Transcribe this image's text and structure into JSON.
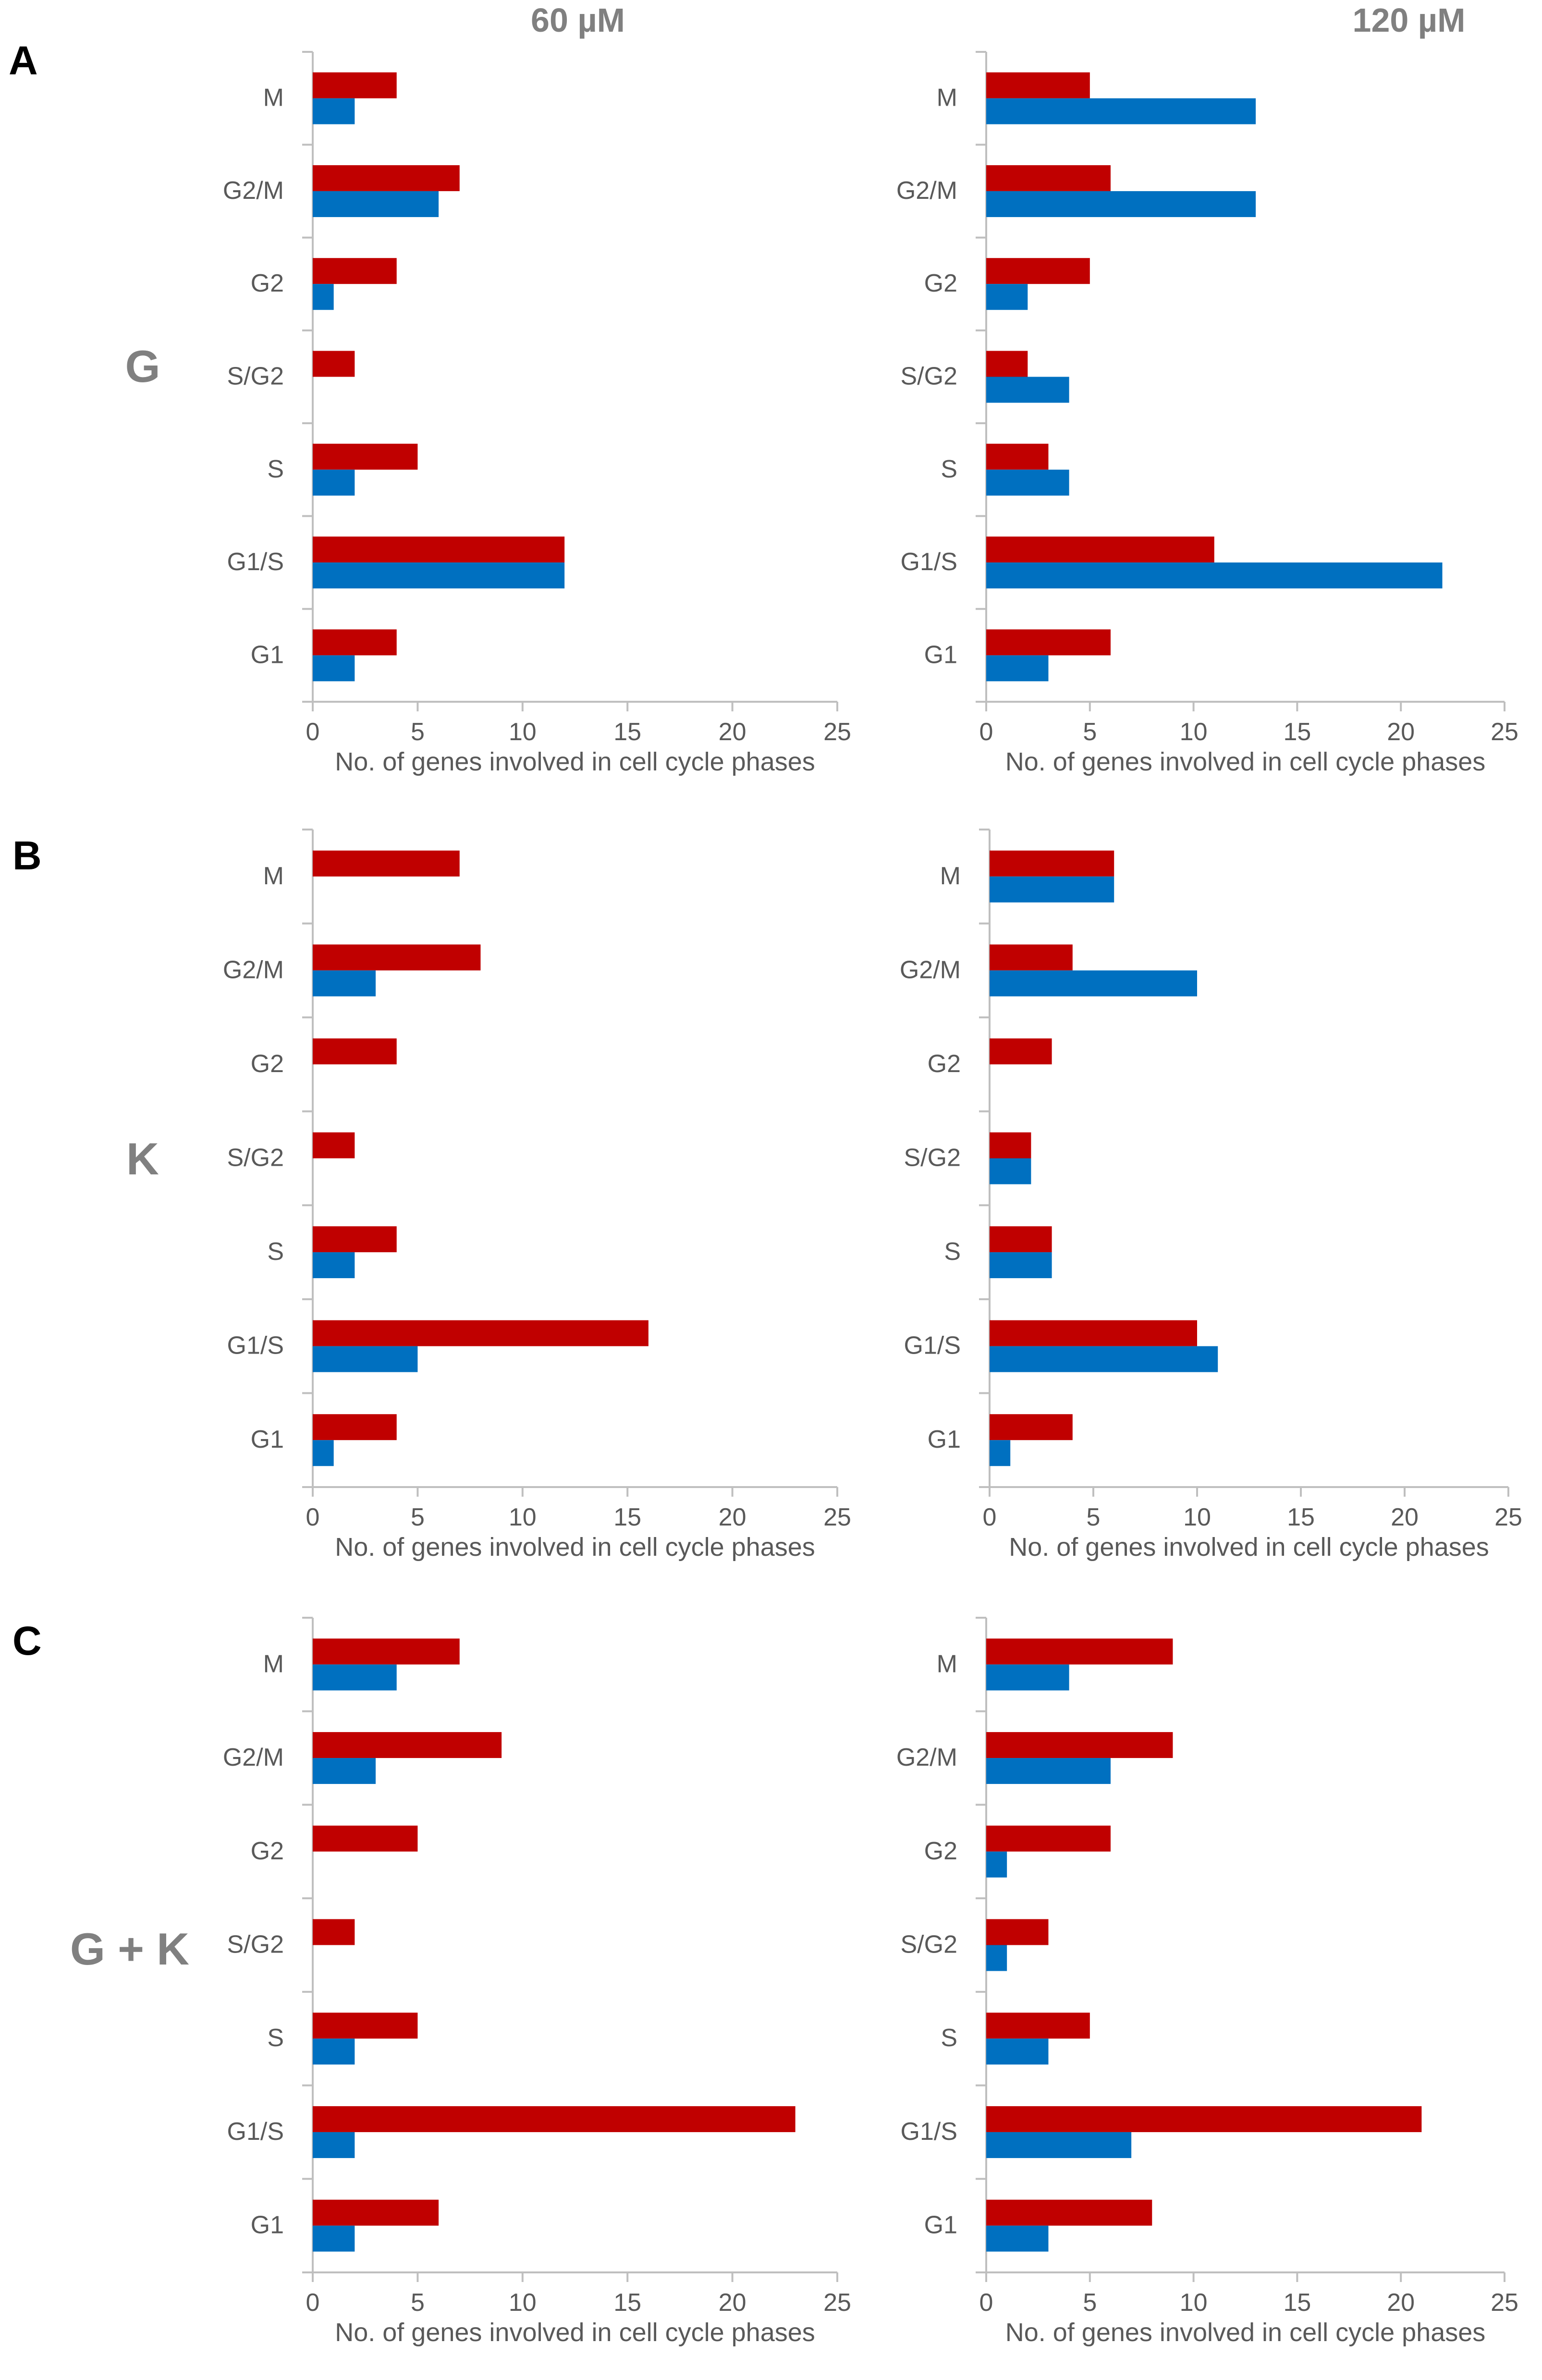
{
  "figure": {
    "column_titles": [
      "60 µM",
      "120 µM"
    ],
    "panels": [
      {
        "letter": "A",
        "treatment": "G"
      },
      {
        "letter": "B",
        "treatment": "K"
      },
      {
        "letter": "C",
        "treatment": "G + K"
      }
    ]
  },
  "colors": {
    "red_series": "#c00000",
    "blue_series": "#0070c0",
    "axis": "#bfbfbf",
    "text": "#595959",
    "label_gray": "#808080",
    "panel_letter": "#000000"
  },
  "chart_data": [
    {
      "id": "A-60",
      "type": "bar",
      "orientation": "horizontal",
      "title": "60 µM",
      "panel": "A",
      "treatment": "G",
      "categories": [
        "M",
        "G2/M",
        "G2",
        "S/G2",
        "S",
        "G1/S",
        "G1"
      ],
      "series": [
        {
          "name": "red",
          "color": "#c00000",
          "values": [
            4,
            7,
            4,
            2,
            5,
            12,
            4
          ]
        },
        {
          "name": "blue",
          "color": "#0070c0",
          "values": [
            2,
            6,
            1,
            0,
            2,
            12,
            2
          ]
        }
      ],
      "xlabel": "No. of genes involved in cell cycle phases",
      "xlim": [
        0,
        25
      ],
      "xticks": [
        0,
        5,
        10,
        15,
        20,
        25
      ],
      "grid": false
    },
    {
      "id": "A-120",
      "type": "bar",
      "orientation": "horizontal",
      "title": "120 µM",
      "panel": "A",
      "treatment": "G",
      "categories": [
        "M",
        "G2/M",
        "G2",
        "S/G2",
        "S",
        "G1/S",
        "G1"
      ],
      "series": [
        {
          "name": "red",
          "color": "#c00000",
          "values": [
            5,
            6,
            5,
            2,
            3,
            11,
            6
          ]
        },
        {
          "name": "blue",
          "color": "#0070c0",
          "values": [
            13,
            13,
            2,
            4,
            4,
            22,
            3
          ]
        }
      ],
      "xlabel": "No. of genes involved in cell cycle phases",
      "xlim": [
        0,
        25
      ],
      "xticks": [
        0,
        5,
        10,
        15,
        20,
        25
      ],
      "grid": false
    },
    {
      "id": "B-60",
      "type": "bar",
      "orientation": "horizontal",
      "title": "60 µM",
      "panel": "B",
      "treatment": "K",
      "categories": [
        "M",
        "G2/M",
        "G2",
        "S/G2",
        "S",
        "G1/S",
        "G1"
      ],
      "series": [
        {
          "name": "red",
          "color": "#c00000",
          "values": [
            7,
            8,
            4,
            2,
            4,
            16,
            4
          ]
        },
        {
          "name": "blue",
          "color": "#0070c0",
          "values": [
            0,
            3,
            0,
            0,
            2,
            5,
            1
          ]
        }
      ],
      "xlabel": "No. of genes involved in cell cycle phases",
      "xlim": [
        0,
        25
      ],
      "xticks": [
        0,
        5,
        10,
        15,
        20,
        25
      ],
      "grid": false
    },
    {
      "id": "B-120",
      "type": "bar",
      "orientation": "horizontal",
      "title": "120 µM",
      "panel": "B",
      "treatment": "K",
      "categories": [
        "M",
        "G2/M",
        "G2",
        "S/G2",
        "S",
        "G1/S",
        "G1"
      ],
      "series": [
        {
          "name": "red",
          "color": "#c00000",
          "values": [
            6,
            4,
            3,
            2,
            3,
            10,
            4
          ]
        },
        {
          "name": "blue",
          "color": "#0070c0",
          "values": [
            6,
            10,
            0,
            2,
            3,
            11,
            1
          ]
        }
      ],
      "xlabel": "No. of genes involved in cell cycle phases",
      "xlim": [
        0,
        25
      ],
      "xticks": [
        0,
        5,
        10,
        15,
        20,
        25
      ],
      "grid": false
    },
    {
      "id": "C-60",
      "type": "bar",
      "orientation": "horizontal",
      "title": "60 µM",
      "panel": "C",
      "treatment": "G + K",
      "categories": [
        "M",
        "G2/M",
        "G2",
        "S/G2",
        "S",
        "G1/S",
        "G1"
      ],
      "series": [
        {
          "name": "red",
          "color": "#c00000",
          "values": [
            7,
            9,
            5,
            2,
            5,
            23,
            6
          ]
        },
        {
          "name": "blue",
          "color": "#0070c0",
          "values": [
            4,
            3,
            0,
            0,
            2,
            2,
            2
          ]
        }
      ],
      "xlabel": "No. of genes involved in cell cycle phases",
      "xlim": [
        0,
        25
      ],
      "xticks": [
        0,
        5,
        10,
        15,
        20,
        25
      ],
      "grid": false
    },
    {
      "id": "C-120",
      "type": "bar",
      "orientation": "horizontal",
      "title": "120 µM",
      "panel": "C",
      "treatment": "G + K",
      "categories": [
        "M",
        "G2/M",
        "G2",
        "S/G2",
        "S",
        "G1/S",
        "G1"
      ],
      "series": [
        {
          "name": "red",
          "color": "#c00000",
          "values": [
            9,
            9,
            6,
            3,
            5,
            21,
            8
          ]
        },
        {
          "name": "blue",
          "color": "#0070c0",
          "values": [
            4,
            6,
            1,
            1,
            3,
            7,
            3
          ]
        }
      ],
      "xlabel": "No. of genes involved in cell cycle phases",
      "xlim": [
        0,
        25
      ],
      "xticks": [
        0,
        5,
        10,
        15,
        20,
        25
      ],
      "grid": false
    }
  ]
}
